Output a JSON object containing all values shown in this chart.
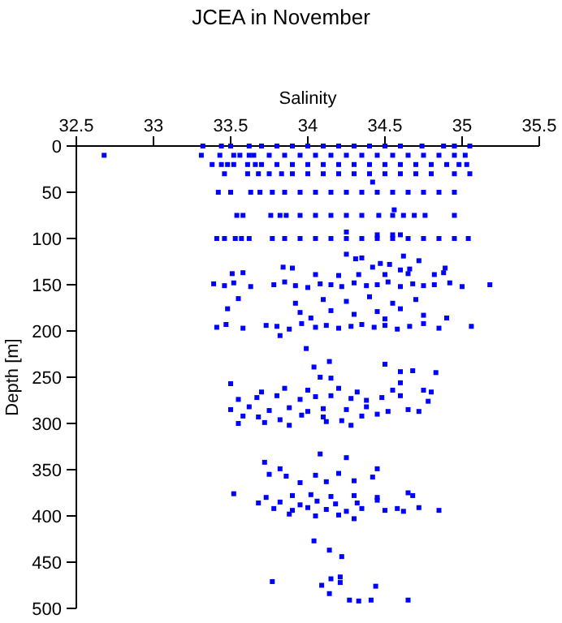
{
  "chart_data": {
    "type": "scatter",
    "title": "JCEA in November",
    "xlabel": "Salinity",
    "ylabel": "Depth [m]",
    "xlim": [
      32.5,
      35.5
    ],
    "xticks": [
      32.5,
      33,
      33.5,
      34,
      34.5,
      35,
      35.5
    ],
    "ylim": [
      500,
      0
    ],
    "yticks": [
      0,
      50,
      100,
      150,
      200,
      250,
      300,
      350,
      400,
      450,
      500
    ],
    "marker": "square",
    "series": [
      {
        "color": "#0000ff",
        "x": [
          33.32,
          33.44,
          33.5,
          33.62,
          33.7,
          33.8,
          33.9,
          34.0,
          34.1,
          34.2,
          34.3,
          34.4,
          34.5,
          34.6,
          34.74,
          34.88,
          34.95,
          35.05,
          32.68,
          33.31,
          33.43,
          33.52,
          33.56,
          33.62,
          33.65,
          33.75,
          33.85,
          33.95,
          34.05,
          34.15,
          34.25,
          34.35,
          34.45,
          34.55,
          34.65,
          34.75,
          34.85,
          34.95,
          35.02,
          33.38,
          33.44,
          33.48,
          33.52,
          33.61,
          33.66,
          33.7,
          33.8,
          33.9,
          34.0,
          34.1,
          34.2,
          34.3,
          34.4,
          34.5,
          34.6,
          34.7,
          34.8,
          34.9,
          34.98,
          35.03,
          33.46,
          33.61,
          33.68,
          33.75,
          33.83,
          33.9,
          34.0,
          34.1,
          34.2,
          34.3,
          34.4,
          34.5,
          34.6,
          34.7,
          34.8,
          34.95,
          35.05,
          34.42,
          33.42,
          33.5,
          33.63,
          33.69,
          33.77,
          33.85,
          33.95,
          34.05,
          34.15,
          34.25,
          34.35,
          34.45,
          34.55,
          34.65,
          34.75,
          34.85,
          34.95,
          34.56,
          33.54,
          33.58,
          33.76,
          33.82,
          33.86,
          33.95,
          34.05,
          34.15,
          34.25,
          34.35,
          34.46,
          34.55,
          34.62,
          34.69,
          34.76,
          34.95,
          34.25,
          34.45,
          34.55,
          34.6,
          33.41,
          33.46,
          33.53,
          33.57,
          33.62,
          33.77,
          33.85,
          33.95,
          34.05,
          34.15,
          34.25,
          34.35,
          34.45,
          34.55,
          34.65,
          34.75,
          34.85,
          34.95,
          35.04,
          34.25,
          34.31,
          34.35,
          34.62,
          34.72,
          34.47,
          34.53,
          33.84,
          33.9,
          34.42,
          34.6,
          34.66,
          34.89,
          33.51,
          33.58,
          34.05,
          34.2,
          34.33,
          34.5,
          34.65,
          34.82,
          34.88,
          33.39,
          33.46,
          33.52,
          33.63,
          33.78,
          33.85,
          33.92,
          34.0,
          34.08,
          34.15,
          34.22,
          34.3,
          34.38,
          34.45,
          34.52,
          34.6,
          34.68,
          34.75,
          34.82,
          34.92,
          35.0,
          35.18,
          33.55,
          33.92,
          34.1,
          34.25,
          34.4,
          34.55,
          34.7,
          33.95,
          34.15,
          34.3,
          34.45,
          34.6,
          34.75,
          33.48,
          34.02,
          34.5,
          34.9,
          33.41,
          33.47,
          33.58,
          33.73,
          33.8,
          33.88,
          33.96,
          34.05,
          34.12,
          34.2,
          34.28,
          34.35,
          34.43,
          34.5,
          34.58,
          34.66,
          34.75,
          34.85,
          35.06,
          33.82,
          33.99,
          34.14,
          34.5,
          34.04,
          34.6,
          34.68,
          34.83,
          34.08,
          34.15,
          34.6,
          33.5,
          33.85,
          33.7,
          34.0,
          34.2,
          34.32,
          34.55,
          34.75,
          34.8,
          33.55,
          33.67,
          33.8,
          33.95,
          34.05,
          34.15,
          34.28,
          34.38,
          34.48,
          34.6,
          34.78,
          33.5,
          33.62,
          33.75,
          33.88,
          34.0,
          34.1,
          34.25,
          34.38,
          34.52,
          34.65,
          34.72,
          33.58,
          33.68,
          33.82,
          33.96,
          34.1,
          34.22,
          34.35,
          34.45,
          33.55,
          33.72,
          33.88,
          34.12,
          34.28,
          34.08,
          34.25,
          33.72,
          33.82,
          34.45,
          33.75,
          33.86,
          34.05,
          34.2,
          34.42,
          33.95,
          34.12,
          34.3,
          33.52,
          34.65,
          34.68,
          33.73,
          33.9,
          34.02,
          34.15,
          34.3,
          34.45,
          33.68,
          33.82,
          33.95,
          34.06,
          34.18,
          34.32,
          34.45,
          33.78,
          33.9,
          34.0,
          34.12,
          34.25,
          34.35,
          34.5,
          34.58,
          34.72,
          34.85,
          34.62,
          33.88,
          34.05,
          34.2,
          34.3,
          34.04,
          34.14,
          34.22,
          33.77,
          34.15,
          34.21,
          34.21,
          34.09,
          34.44,
          34.14,
          34.27,
          34.33,
          34.41,
          34.65
        ],
        "values": [
          0,
          0,
          0,
          0,
          0,
          0,
          0,
          0,
          0,
          0,
          0,
          0,
          0,
          0,
          0,
          0,
          0,
          0,
          10,
          10,
          10,
          10,
          10,
          10,
          10,
          10,
          10,
          10,
          10,
          10,
          10,
          10,
          10,
          10,
          10,
          10,
          10,
          10,
          10,
          20,
          20,
          20,
          20,
          20,
          20,
          20,
          20,
          20,
          20,
          20,
          20,
          20,
          20,
          20,
          20,
          20,
          20,
          20,
          20,
          20,
          30,
          30,
          30,
          30,
          30,
          30,
          30,
          30,
          30,
          30,
          30,
          30,
          30,
          30,
          30,
          30,
          30,
          39,
          50,
          50,
          50,
          50,
          50,
          50,
          50,
          50,
          50,
          50,
          50,
          50,
          50,
          50,
          50,
          50,
          50,
          69,
          75,
          75,
          75,
          75,
          75,
          75,
          75,
          75,
          75,
          75,
          75,
          75,
          75,
          75,
          75,
          75,
          93,
          96,
          96,
          96,
          100,
          100,
          100,
          100,
          100,
          100,
          100,
          100,
          100,
          100,
          100,
          100,
          100,
          100,
          100,
          100,
          100,
          100,
          100,
          117,
          122,
          121,
          119,
          124,
          127,
          128,
          131,
          132,
          131,
          134,
          133,
          132,
          138,
          137,
          139,
          140,
          139,
          139,
          138,
          139,
          137,
          149,
          151,
          148,
          152,
          150,
          147,
          151,
          153,
          149,
          150,
          152,
          148,
          151,
          150,
          147,
          152,
          149,
          151,
          150,
          148,
          152,
          150,
          165,
          170,
          166,
          168,
          163,
          170,
          166,
          180,
          178,
          182,
          179,
          176,
          183,
          176,
          186,
          187,
          186,
          196,
          193,
          197,
          194,
          195,
          198,
          192,
          196,
          194,
          197,
          195,
          193,
          196,
          194,
          198,
          195,
          192,
          197,
          195,
          205,
          219,
          233,
          236,
          239,
          244,
          243,
          245,
          250,
          251,
          256,
          257,
          262,
          266,
          264,
          262,
          266,
          264,
          264,
          266,
          274,
          272,
          270,
          274,
          271,
          270,
          273,
          275,
          272,
          270,
          276,
          285,
          282,
          286,
          283,
          287,
          284,
          285,
          282,
          287,
          285,
          287,
          292,
          293,
          296,
          291,
          293,
          297,
          292,
          290,
          300,
          299,
          302,
          298,
          302,
          333,
          337,
          342,
          349,
          349,
          355,
          357,
          356,
          354,
          358,
          364,
          363,
          362,
          376,
          375,
          378,
          380,
          378,
          377,
          379,
          378,
          380,
          386,
          385,
          388,
          384,
          387,
          386,
          383,
          392,
          394,
          391,
          393,
          395,
          392,
          394,
          392,
          391,
          394,
          395,
          398,
          400,
          399,
          403,
          427,
          437,
          444,
          471,
          468,
          466,
          472,
          475,
          476,
          484,
          491,
          492,
          491,
          491
        ]
      }
    ]
  }
}
